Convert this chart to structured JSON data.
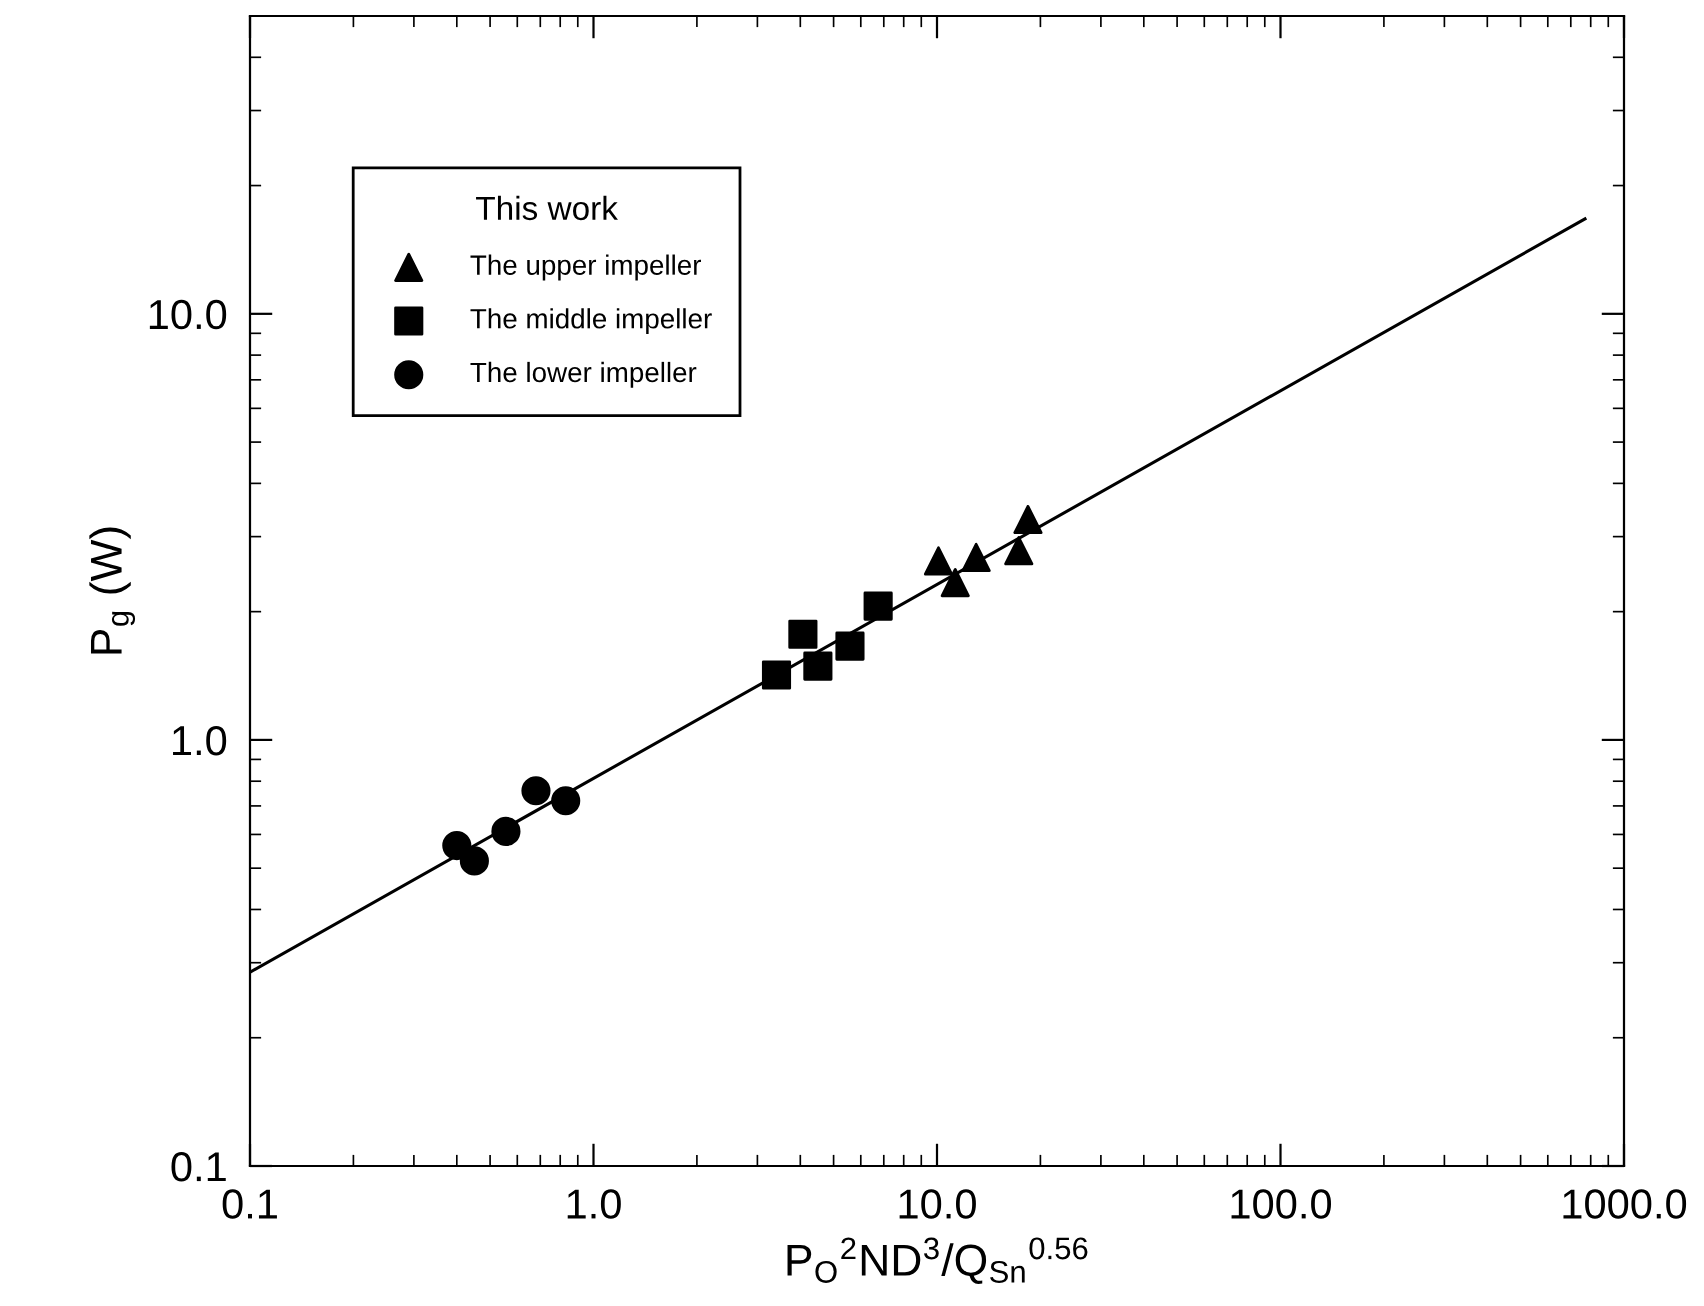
{
  "chart_data": {
    "type": "scatter",
    "xlabel": "P$_{O}$$^{2}$ND$^{3}$/Q$_{Sn}$$^{0.56}$",
    "ylabel": "P$_{g}$ (W)",
    "legend_title": "This work",
    "legend": "top left",
    "log": "xy",
    "grid": false,
    "xlim": [
      0.1,
      1000
    ],
    "ylim": [
      0.1,
      50
    ],
    "xticks": [
      {
        "value": 0.1,
        "label": "0.1"
      },
      {
        "value": 1,
        "label": "1.0"
      },
      {
        "value": 10,
        "label": "10.0"
      },
      {
        "value": 100,
        "label": "100.0"
      },
      {
        "value": 1000,
        "label": "1000.0"
      }
    ],
    "yticks": [
      {
        "value": 0.1,
        "label": "0.1"
      },
      {
        "value": 1,
        "label": "1.0"
      },
      {
        "value": 10,
        "label": "10.0"
      }
    ],
    "series": [
      {
        "name": "The upper impeller",
        "color": "#000000",
        "marker": "triangle",
        "x": [
          10.1,
          11.3,
          13.0,
          17.3,
          18.4
        ],
        "values": [
          2.63,
          2.34,
          2.68,
          2.78,
          3.29
        ]
      },
      {
        "name": "The middle impeller",
        "color": "#000000",
        "marker": "square",
        "x": [
          3.41,
          4.07,
          4.5,
          5.58,
          6.74
        ],
        "values": [
          1.42,
          1.77,
          1.49,
          1.66,
          2.06
        ]
      },
      {
        "name": "The lower impeller",
        "color": "#000000",
        "marker": "circle",
        "x": [
          0.4,
          0.45,
          0.556,
          0.68,
          0.83
        ],
        "values": [
          0.565,
          0.52,
          0.61,
          0.76,
          0.72
        ]
      },
      {
        "type": "line",
        "color": "#000000",
        "line_style": "solid",
        "marker": "none",
        "x": [
          0.1,
          770
        ],
        "values": [
          0.285,
          16.7
        ]
      }
    ]
  }
}
